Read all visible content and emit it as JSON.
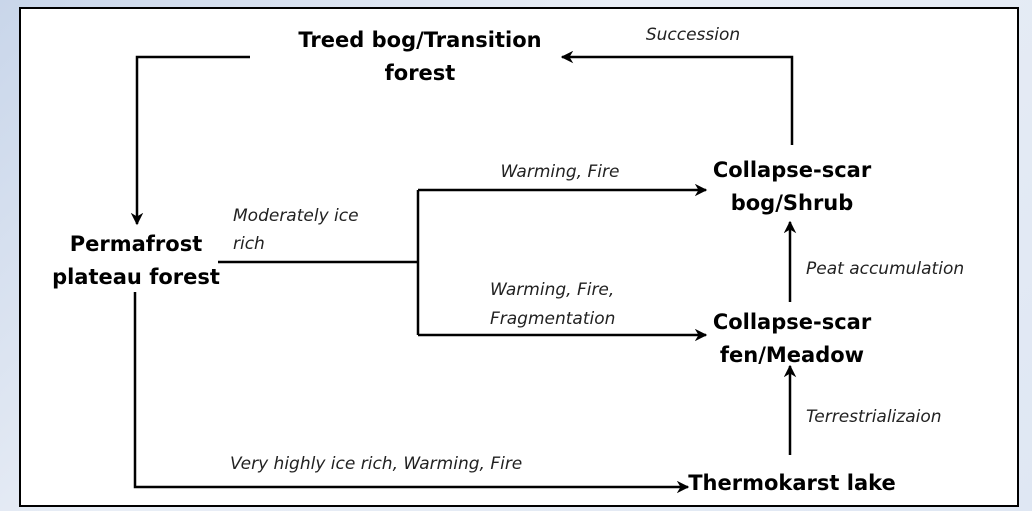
{
  "nodes": [
    {
      "lines": [
        "Treed bog/Transition",
        "forest"
      ]
    },
    {
      "lines": [
        "Permafrost",
        "plateau forest"
      ]
    },
    {
      "lines": [
        "Collapse-scar",
        "bog/Shrub"
      ]
    },
    {
      "lines": [
        "Collapse-scar",
        "fen/Meadow"
      ]
    },
    {
      "lines": [
        "Thermokarst lake"
      ]
    }
  ],
  "edges": [
    {
      "lines": [
        "Succession"
      ]
    },
    {
      "lines": [
        "Moderately ice",
        "rich"
      ]
    },
    {
      "lines": [
        "Warming, Fire"
      ]
    },
    {
      "lines": [
        "Warming, Fire,",
        "Fragmentation"
      ]
    },
    {
      "lines": [
        "Peat accumulation"
      ]
    },
    {
      "lines": [
        "Terrestrializaion"
      ]
    },
    {
      "lines": [
        "Very highly ice rich, Warming, Fire"
      ]
    }
  ]
}
